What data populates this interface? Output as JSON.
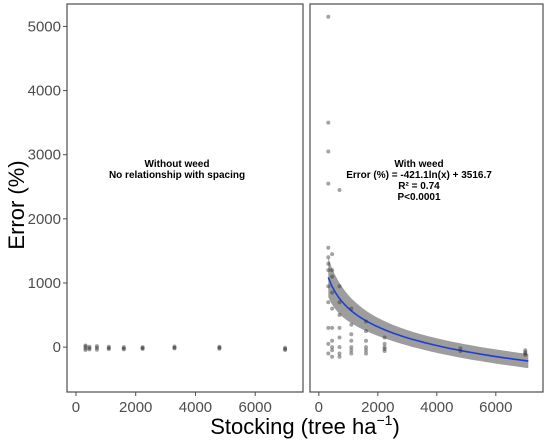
{
  "chart_data": {
    "type": "scatter",
    "ylabel": "Error (%)",
    "xlabel_main": "Stocking (tree ha",
    "xlabel_sup": "−1",
    "xlabel_close": ")",
    "xlim": [
      -300,
      7600
    ],
    "ylim": [
      -700,
      5350
    ],
    "x_ticks": [
      0,
      2000,
      4000,
      6000
    ],
    "y_ticks": [
      0,
      1000,
      2000,
      3000,
      4000,
      5000
    ],
    "colors": {
      "points": "#333333",
      "fit_line": "#1f3fd1",
      "ribbon": "#8c8c8c",
      "panel_border": "#4d4d4d"
    },
    "panels": [
      {
        "annotation": [
          "Without weed",
          "No relationship with spacing"
        ],
        "series": [
          {
            "x": [
              320,
              320,
              320,
              320,
              450,
              450,
              450,
              700,
              700,
              700,
              1100,
              1100,
              1100,
              1600,
              1600,
              1600,
              2230,
              2230,
              2230,
              3300,
              3300,
              3300,
              4800,
              4800,
              4800,
              7000,
              7000,
              7000
            ],
            "y": [
              -20,
              10,
              -45,
              25,
              -15,
              -35,
              5,
              -10,
              -40,
              15,
              -15,
              -30,
              5,
              -20,
              -35,
              0,
              -15,
              -30,
              0,
              -10,
              -20,
              10,
              -10,
              -25,
              5,
              -30,
              -45,
              -10
            ]
          }
        ]
      },
      {
        "annotation": [
          "With weed",
          "Error (%) = -421.1ln(x) + 3516.7",
          "R² = 0.74",
          "P<0.0001"
        ],
        "fit": {
          "a": -421.1,
          "b": 3516.7,
          "x_range": [
            320,
            7100
          ]
        },
        "series": [
          {
            "x": [
              320,
              320,
              320,
              320,
              320,
              320,
              320,
              320,
              320,
              320,
              320,
              320,
              320,
              450,
              450,
              450,
              450,
              450,
              450,
              450,
              450,
              450,
              450,
              700,
              700,
              700,
              700,
              700,
              700,
              700,
              700,
              700,
              1100,
              1100,
              1100,
              1100,
              1100,
              1100,
              1100,
              1600,
              1600,
              1600,
              1600,
              1600,
              1600,
              2230,
              2230,
              2230,
              2230,
              2230,
              4800,
              4800,
              7000,
              7000,
              7000,
              7000
            ],
            "y": [
              5150,
              3500,
              3050,
              2550,
              1550,
              1400,
              1300,
              1200,
              950,
              700,
              300,
              50,
              -100,
              1450,
              1200,
              1100,
              850,
              600,
              300,
              100,
              -50,
              -150,
              0,
              2450,
              950,
              700,
              500,
              300,
              150,
              0,
              -100,
              -150,
              600,
              350,
              200,
              100,
              0,
              -50,
              -100,
              400,
              250,
              100,
              0,
              -50,
              -100,
              150,
              50,
              0,
              -30,
              -60,
              -20,
              -60,
              -50,
              -80,
              -100,
              -120
            ]
          }
        ]
      }
    ]
  }
}
